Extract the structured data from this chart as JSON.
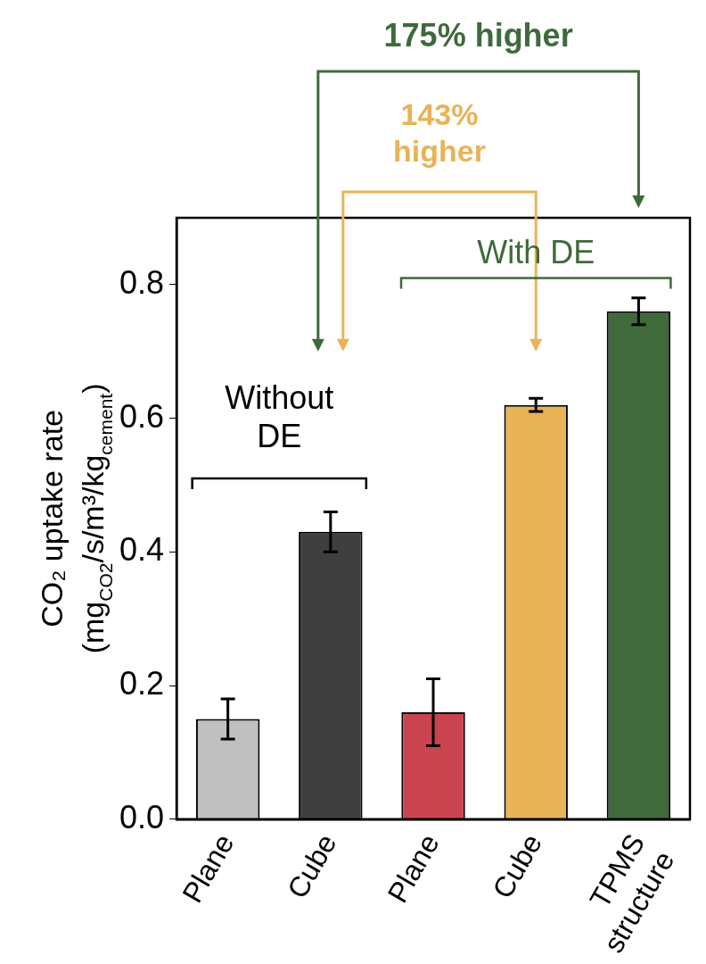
{
  "chart_data": {
    "type": "bar",
    "categories": [
      "Plane",
      "Cube",
      "Plane",
      "Cube",
      "TPMS structure"
    ],
    "values": [
      0.15,
      0.43,
      0.16,
      0.62,
      0.76
    ],
    "errors": [
      0.03,
      0.03,
      0.05,
      0.01,
      0.02
    ],
    "colors": [
      "#c0c0c0",
      "#3f3f3f",
      "#c9444f",
      "#e8b356",
      "#3f6a3b"
    ],
    "ylabel": "CO₂ uptake rate\n(mg$_{CO2}$/s/m³/kg$_{cement}$)",
    "ylim": [
      0,
      0.9
    ],
    "yticks": [
      {
        "value": 0,
        "label": "0.0"
      },
      {
        "value": 0.2,
        "label": "0.2"
      },
      {
        "value": 0.4,
        "label": "0.4"
      },
      {
        "value": 0.6,
        "label": "0.6"
      },
      {
        "value": 0.8,
        "label": "0.8"
      }
    ],
    "annotations": [
      "175% higher",
      "143%\nhigher",
      "With DE",
      "Without\nDE"
    ]
  }
}
